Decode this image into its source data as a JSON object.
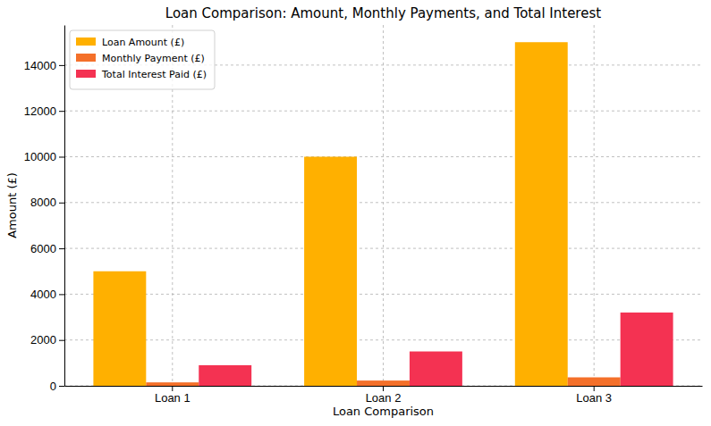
{
  "chart_data": {
    "type": "bar",
    "title": "Loan Comparison: Amount, Monthly Payments, and Total Interest",
    "x_label": "Loan Comparison",
    "y_label": "Amount (£)",
    "categories": [
      "Loan 1",
      "Loan 2",
      "Loan 3"
    ],
    "series": [
      {
        "name": "Loan Amount (£)",
        "color": "#ffb000",
        "values": [
          5000,
          10000,
          15000
        ]
      },
      {
        "name": "Monthly Payment (£)",
        "color": "#f4702a",
        "values": [
          150,
          230,
          370
        ]
      },
      {
        "name": "Total Interest Paid (£)",
        "color": "#f43252",
        "values": [
          900,
          1500,
          3200
        ]
      }
    ],
    "ylim": [
      0,
      15750
    ],
    "yticks": [
      0,
      2000,
      4000,
      6000,
      8000,
      10000,
      12000,
      14000
    ],
    "grid": true,
    "legend": "upper left"
  }
}
